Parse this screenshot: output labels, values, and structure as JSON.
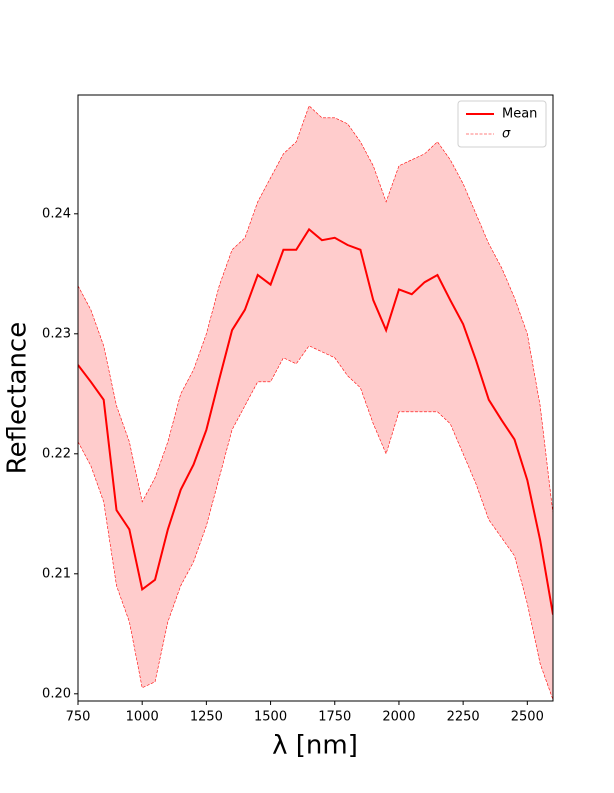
{
  "chart_data": {
    "type": "line",
    "x_label": "λ [nm]",
    "y_label": "Reflectance",
    "x": [
      750,
      800,
      850,
      900,
      950,
      1000,
      1050,
      1100,
      1150,
      1200,
      1250,
      1300,
      1350,
      1400,
      1450,
      1500,
      1550,
      1600,
      1650,
      1700,
      1750,
      1800,
      1850,
      1900,
      1950,
      2000,
      2050,
      2100,
      2150,
      2200,
      2250,
      2300,
      2350,
      2400,
      2450,
      2500,
      2550,
      2600
    ],
    "series": [
      {
        "name": "Mean",
        "color": "#ff0000",
        "values": [
          0.2274,
          0.226,
          0.2245,
          0.2153,
          0.2137,
          0.2087,
          0.2095,
          0.2137,
          0.217,
          0.2191,
          0.222,
          0.2262,
          0.2303,
          0.232,
          0.2349,
          0.2341,
          0.237,
          0.237,
          0.2387,
          0.2378,
          0.238,
          0.2374,
          0.237,
          0.2328,
          0.2303,
          0.2337,
          0.2333,
          0.2343,
          0.2349,
          0.2328,
          0.2308,
          0.2278,
          0.2245,
          0.2228,
          0.2212,
          0.2178,
          0.2128,
          0.2066
        ]
      },
      {
        "name": "σ",
        "color": "#ff0000",
        "fill": "#ffcccc",
        "upper": [
          0.234,
          0.232,
          0.229,
          0.224,
          0.221,
          0.216,
          0.218,
          0.221,
          0.225,
          0.227,
          0.23,
          0.234,
          0.237,
          0.238,
          0.241,
          0.243,
          0.245,
          0.246,
          0.249,
          0.248,
          0.248,
          0.2475,
          0.246,
          0.244,
          0.241,
          0.244,
          0.2445,
          0.245,
          0.246,
          0.2445,
          0.2425,
          0.24,
          0.2375,
          0.2355,
          0.233,
          0.23,
          0.224,
          0.215
        ],
        "lower": [
          0.221,
          0.219,
          0.216,
          0.209,
          0.206,
          0.2005,
          0.201,
          0.206,
          0.209,
          0.211,
          0.214,
          0.218,
          0.222,
          0.224,
          0.226,
          0.226,
          0.228,
          0.2275,
          0.229,
          0.2285,
          0.228,
          0.2265,
          0.2255,
          0.2225,
          0.22,
          0.2235,
          0.2235,
          0.2235,
          0.2235,
          0.2225,
          0.22,
          0.2175,
          0.2145,
          0.213,
          0.2115,
          0.2075,
          0.2025,
          0.1995
        ]
      }
    ],
    "xlim": [
      750,
      2600
    ],
    "ylim": [
      0.1994,
      0.2499
    ],
    "xticks": [
      750,
      1000,
      1250,
      1500,
      1750,
      2000,
      2250,
      2500
    ],
    "yticks": [
      {
        "value": 0.2,
        "label": "0.20"
      },
      0.21,
      0.22,
      0.23,
      0.24
    ],
    "legend": "upper right"
  }
}
